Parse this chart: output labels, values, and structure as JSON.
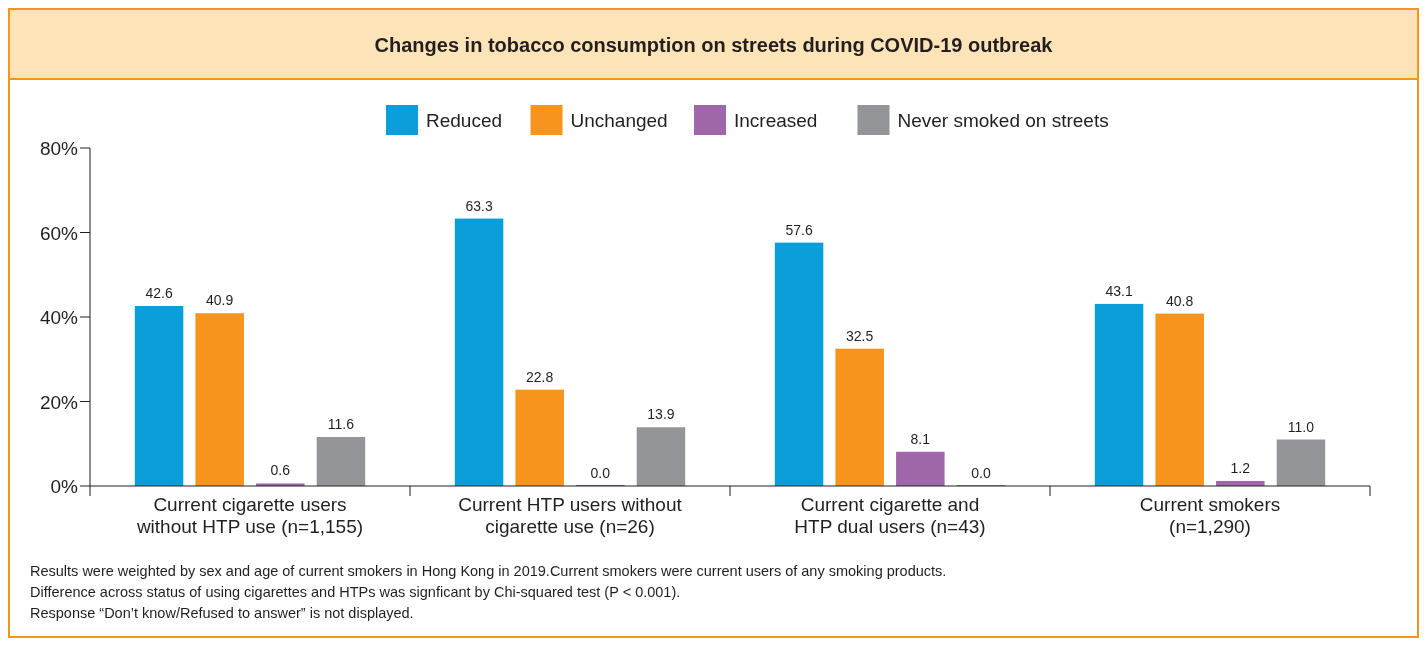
{
  "chart_data": {
    "type": "bar",
    "title": "Changes in tobacco consumption on streets during COVID-19 outbreak",
    "categories": [
      "Current cigarette users without HTP use (n=1,155)",
      "Current HTP users without cigarette use (n=26)",
      "Current cigarette and HTP dual users (n=43)",
      "Current smokers (n=1,290)"
    ],
    "series": [
      {
        "name": "Reduced",
        "color": "#0a9fdb",
        "values": [
          42.6,
          63.3,
          57.6,
          43.1
        ],
        "value_labels": [
          "42.6",
          "63.3",
          "57.6",
          "43.1"
        ]
      },
      {
        "name": "Unchanged",
        "color": "#f7941d",
        "values": [
          40.9,
          22.8,
          32.5,
          40.8
        ],
        "value_labels": [
          "40.9",
          "22.8",
          "32.5",
          "40.8"
        ]
      },
      {
        "name": "Increased",
        "color": "#a066aa",
        "values": [
          0.6,
          0,
          8.1,
          1.2
        ],
        "value_labels": [
          "0.6",
          "0.0",
          "8.1",
          "1.2"
        ]
      },
      {
        "name": "Never smoked on streets",
        "color": "#939598",
        "values": [
          11.6,
          13.9,
          0,
          11.0
        ],
        "value_labels": [
          "11.6",
          "13.9",
          "0.0",
          "11.0"
        ]
      }
    ],
    "ylim": [
      0,
      80
    ],
    "yticks": [
      {
        "value": 0,
        "label": "0%"
      },
      {
        "value": 20,
        "label": "20%"
      },
      {
        "value": 40,
        "label": "40%"
      },
      {
        "value": 60,
        "label": "60%"
      },
      {
        "value": 80,
        "label": "80%"
      }
    ],
    "grid": false,
    "legend": "top",
    "annotations": [
      "Results were weighted by sex and age of current smokers in Hong Kong in 2019.Current smokers were current users of any smoking products.",
      "Difference across status of using cigarettes and HTPs was signficant by Chi-squared test (P < 0.001).",
      "Response “Don’t know/Refused to answer” is not displayed."
    ]
  }
}
